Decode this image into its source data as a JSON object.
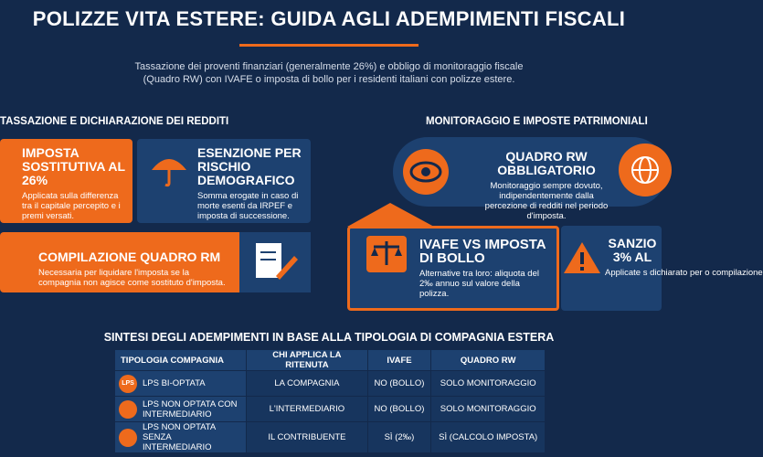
{
  "header": {
    "title": "POLIZZE VITA ESTERE: GUIDA AGLI ADEMPIMENTI FISCALI",
    "subtitle": "Tassazione dei proventi finanziari (generalmente 26%) e obbligo di monitoraggio fiscale (Quadro RW) con IVAFE o imposta di bollo per i residenti italiani con polizze estere."
  },
  "left": {
    "heading": "TASSAZIONE E DICHIARAZIONE DEI REDDITI",
    "cards": [
      {
        "title": "IMPOSTA SOSTITUTIVA AL 26%",
        "text": "Applicata sulla differenza tra il capitale percepito e i premi versati."
      },
      {
        "title": "ESENZIONE PER RISCHIO DEMOGRAFICO",
        "text": "Somma erogate in caso di morte esenti da IRPEF e imposta di successione."
      },
      {
        "title": "COMPILAZIONE QUADRO RM",
        "text": "Necessaria per liquidare l'imposta se la compagnia non agisce come sostituto d'imposta."
      }
    ]
  },
  "right": {
    "heading": "MONITORAGGIO E IMPOSTE PATRIMONIALI",
    "cards": [
      {
        "title": "QUADRO RW OBBLIGATORIO",
        "text": "Monitoraggio sempre dovuto, indipendentemente dalla percezione di redditi nel periodo d'imposta."
      },
      {
        "title": "IVAFE VS IMPOSTA DI BOLLO",
        "text": "Alternative tra loro: aliquota del 2‰ annuo sul valore della polizza."
      },
      {
        "title": "SANZIO 3% AL",
        "text": "Applicate s dichiarato per o compilazione"
      }
    ]
  },
  "table": {
    "title": "SINTESI DEGLI ADEMPIMENTI IN BASE ALLA TIPOLOGIA DI COMPAGNIA ESTERA",
    "badge": "LPS",
    "headers": [
      "TIPOLOGIA COMPAGNIA",
      "CHI APPLICA LA RITENUTA",
      "IVAFE",
      "QUADRO RW"
    ],
    "rows": [
      [
        "LPS BI-OPTATA",
        "LA COMPAGNIA",
        "NO (BOLLO)",
        "SOLO MONITORAGGIO"
      ],
      [
        "LPS NON OPTATA CON INTERMEDIARIO",
        "L'INTERMEDIARIO",
        "NO (BOLLO)",
        "SOLO MONITORAGGIO"
      ],
      [
        "LPS NON OPTATA SENZA INTERMEDIARIO",
        "IL CONTRIBUENTE",
        "SÌ (2‰)",
        "SÌ (CALCOLO IMPOSTA)"
      ]
    ]
  }
}
